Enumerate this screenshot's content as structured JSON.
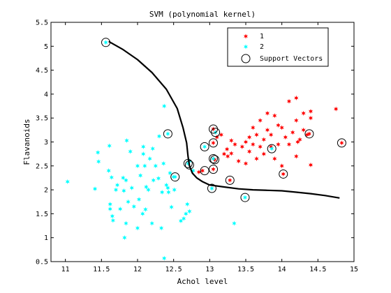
{
  "chart_data": {
    "type": "scatter",
    "title": "SVM (polynomial kernel)",
    "xlabel": "Achol level",
    "ylabel": "Flavanoids",
    "xlim": [
      10.8,
      15.0
    ],
    "ylim": [
      0.5,
      5.5
    ],
    "xticks": [
      11,
      11.5,
      12,
      12.5,
      13,
      13.5,
      14,
      14.5,
      15
    ],
    "xtick_labels": [
      "11",
      "11.5",
      "12",
      "12.5",
      "13",
      "13.5",
      "14",
      "14.5",
      "15"
    ],
    "yticks": [
      0.5,
      1,
      1.5,
      2,
      2.5,
      3,
      3.5,
      4,
      4.5,
      5,
      5.5
    ],
    "ytick_labels": [
      "0.5",
      "1",
      "1.5",
      "2",
      "2.5",
      "3",
      "3.5",
      "4",
      "4.5",
      "5",
      "5.5"
    ],
    "grid": false,
    "legend_position": "top-right",
    "series": [
      {
        "name": "1",
        "color": "#ff0000",
        "marker": "star",
        "points": [
          [
            12.85,
            2.37
          ],
          [
            12.9,
            2.4
          ],
          [
            13.05,
            2.43
          ],
          [
            13.05,
            2.65
          ],
          [
            13.05,
            2.98
          ],
          [
            13.05,
            3.27
          ],
          [
            13.07,
            2.63
          ],
          [
            13.1,
            3.1
          ],
          [
            13.16,
            3.15
          ],
          [
            13.2,
            2.75
          ],
          [
            13.24,
            2.85
          ],
          [
            13.25,
            2.7
          ],
          [
            13.28,
            2.2
          ],
          [
            13.3,
            2.76
          ],
          [
            13.3,
            3.03
          ],
          [
            13.35,
            2.95
          ],
          [
            13.4,
            2.6
          ],
          [
            13.45,
            2.9
          ],
          [
            13.5,
            3.0
          ],
          [
            13.5,
            2.55
          ],
          [
            13.55,
            3.1
          ],
          [
            13.55,
            2.8
          ],
          [
            13.6,
            3.3
          ],
          [
            13.6,
            2.95
          ],
          [
            13.65,
            3.15
          ],
          [
            13.65,
            2.65
          ],
          [
            13.7,
            2.9
          ],
          [
            13.7,
            3.45
          ],
          [
            13.75,
            3.05
          ],
          [
            13.75,
            2.75
          ],
          [
            13.8,
            3.25
          ],
          [
            13.8,
            3.6
          ],
          [
            13.85,
            2.9
          ],
          [
            13.85,
            3.15
          ],
          [
            13.9,
            3.55
          ],
          [
            13.9,
            2.65
          ],
          [
            13.95,
            3.35
          ],
          [
            13.95,
            2.95
          ],
          [
            14.0,
            3.3
          ],
          [
            14.0,
            2.5
          ],
          [
            14.02,
            2.33
          ],
          [
            14.05,
            3.1
          ],
          [
            14.1,
            2.95
          ],
          [
            14.1,
            3.85
          ],
          [
            14.15,
            3.2
          ],
          [
            14.2,
            3.45
          ],
          [
            14.2,
            2.7
          ],
          [
            14.2,
            3.92
          ],
          [
            14.22,
            3.0
          ],
          [
            14.25,
            3.05
          ],
          [
            14.3,
            3.6
          ],
          [
            14.3,
            3.25
          ],
          [
            14.35,
            3.15
          ],
          [
            14.38,
            3.17
          ],
          [
            14.4,
            3.5
          ],
          [
            14.4,
            3.64
          ],
          [
            14.4,
            2.52
          ],
          [
            14.75,
            3.69
          ],
          [
            14.83,
            2.98
          ]
        ]
      },
      {
        "name": "2",
        "color": "#00ffff",
        "marker": "star",
        "points": [
          [
            11.03,
            2.17
          ],
          [
            11.41,
            2.02
          ],
          [
            11.45,
            2.78
          ],
          [
            11.46,
            2.59
          ],
          [
            11.56,
            5.08
          ],
          [
            11.6,
            2.4
          ],
          [
            11.61,
            2.92
          ],
          [
            11.62,
            1.7
          ],
          [
            11.62,
            1.6
          ],
          [
            11.64,
            2.26
          ],
          [
            11.65,
            1.45
          ],
          [
            11.66,
            1.36
          ],
          [
            11.7,
            2.0
          ],
          [
            11.72,
            2.1
          ],
          [
            11.76,
            1.6
          ],
          [
            11.8,
            2.25
          ],
          [
            11.81,
            1.98
          ],
          [
            11.82,
            1.0
          ],
          [
            11.84,
            2.2
          ],
          [
            11.84,
            1.3
          ],
          [
            11.85,
            3.03
          ],
          [
            11.87,
            1.75
          ],
          [
            11.9,
            2.8
          ],
          [
            11.92,
            2.04
          ],
          [
            11.95,
            1.65
          ],
          [
            12.0,
            1.2
          ],
          [
            12.0,
            2.5
          ],
          [
            12.02,
            1.8
          ],
          [
            12.04,
            2.3
          ],
          [
            12.07,
            1.5
          ],
          [
            12.08,
            2.9
          ],
          [
            12.08,
            2.75
          ],
          [
            12.1,
            2.5
          ],
          [
            12.11,
            1.59
          ],
          [
            12.12,
            2.06
          ],
          [
            12.15,
            2.0
          ],
          [
            12.17,
            2.65
          ],
          [
            12.2,
            1.3
          ],
          [
            12.21,
            2.86
          ],
          [
            12.22,
            2.2
          ],
          [
            12.25,
            2.5
          ],
          [
            12.29,
            2.24
          ],
          [
            12.3,
            3.12
          ],
          [
            12.33,
            1.2
          ],
          [
            12.34,
            1.95
          ],
          [
            12.36,
            2.55
          ],
          [
            12.37,
            3.75
          ],
          [
            12.37,
            0.57
          ],
          [
            12.4,
            2.1
          ],
          [
            12.42,
            2.04
          ],
          [
            12.42,
            3.17
          ],
          [
            12.43,
            1.95
          ],
          [
            12.45,
            2.35
          ],
          [
            12.47,
            1.64
          ],
          [
            12.5,
            2.27
          ],
          [
            12.51,
            2.0
          ],
          [
            12.52,
            2.27
          ],
          [
            12.6,
            1.35
          ],
          [
            12.64,
            1.4
          ],
          [
            12.67,
            1.5
          ],
          [
            12.69,
            1.7
          ],
          [
            12.7,
            2.55
          ],
          [
            12.72,
            1.55
          ],
          [
            12.72,
            2.6
          ],
          [
            12.77,
            2.4
          ],
          [
            12.93,
            2.9
          ],
          [
            13.03,
            2.03
          ],
          [
            13.05,
            2.65
          ],
          [
            13.08,
            3.2
          ],
          [
            13.34,
            1.3
          ],
          [
            13.49,
            1.84
          ],
          [
            13.86,
            2.86
          ]
        ]
      }
    ],
    "support_vectors": {
      "name": "Support Vectors",
      "marker": "circle",
      "points": [
        [
          11.56,
          5.08
        ],
        [
          12.42,
          3.17
        ],
        [
          12.52,
          2.27
        ],
        [
          12.7,
          2.55
        ],
        [
          12.72,
          2.52
        ],
        [
          12.93,
          2.4
        ],
        [
          12.93,
          2.9
        ],
        [
          13.03,
          2.03
        ],
        [
          13.05,
          2.43
        ],
        [
          13.05,
          2.65
        ],
        [
          13.05,
          2.98
        ],
        [
          13.05,
          3.27
        ],
        [
          13.07,
          2.63
        ],
        [
          13.08,
          3.2
        ],
        [
          13.28,
          2.2
        ],
        [
          13.49,
          1.84
        ],
        [
          13.86,
          2.86
        ],
        [
          14.02,
          2.33
        ],
        [
          14.38,
          3.17
        ],
        [
          14.83,
          2.98
        ]
      ]
    },
    "decision_boundary": {
      "points": [
        [
          11.6,
          5.1
        ],
        [
          11.8,
          4.93
        ],
        [
          12.0,
          4.72
        ],
        [
          12.2,
          4.45
        ],
        [
          12.4,
          4.1
        ],
        [
          12.55,
          3.7
        ],
        [
          12.63,
          3.3
        ],
        [
          12.68,
          2.98
        ],
        [
          12.7,
          2.7
        ],
        [
          12.72,
          2.5
        ],
        [
          12.76,
          2.35
        ],
        [
          12.82,
          2.25
        ],
        [
          12.9,
          2.17
        ],
        [
          13.0,
          2.1
        ],
        [
          13.2,
          2.06
        ],
        [
          13.4,
          2.02
        ],
        [
          13.6,
          2.0
        ],
        [
          13.8,
          1.99
        ],
        [
          14.0,
          1.98
        ],
        [
          14.2,
          1.95
        ],
        [
          14.4,
          1.92
        ],
        [
          14.6,
          1.88
        ],
        [
          14.8,
          1.83
        ]
      ]
    },
    "legend": [
      {
        "label": "1",
        "color": "#ff0000",
        "marker": "star"
      },
      {
        "label": "2",
        "color": "#00ffff",
        "marker": "star"
      },
      {
        "label": "Support Vectors",
        "color": "#000000",
        "marker": "circle"
      }
    ]
  }
}
